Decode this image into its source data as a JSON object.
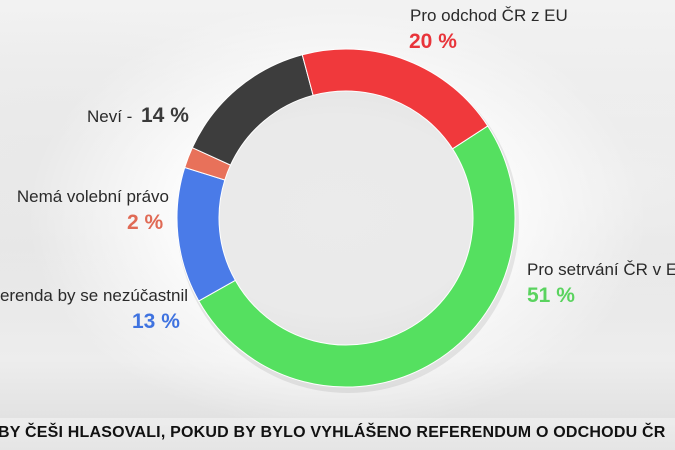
{
  "caption": "BY ČEŠI HLASOVALI, POKUD BY BYLO VYHLÁŠENO REFERENDUM O ODCHODU ČR",
  "chart_data": {
    "type": "donut",
    "title": "",
    "slices": [
      {
        "label": "Pro setrvání ČR v EU",
        "value": 51,
        "value_label": "51 %",
        "color": "#55e060"
      },
      {
        "label": "V případě referenda by se nezúčastnil",
        "value": 13,
        "value_label": "13 %",
        "color": "#4a7be8"
      },
      {
        "label": "Nemá volební právo",
        "value": 2,
        "value_label": "2 %",
        "color": "#e8715a"
      },
      {
        "label": "Neví",
        "value": 14,
        "value_label": "14 %",
        "color": "#3d3d3d"
      },
      {
        "label": "Pro odchod ČR z EU",
        "value": 20,
        "value_label": "20 %",
        "color": "#f0393c"
      }
    ],
    "start_angle_deg": 57,
    "direction": "clockwise"
  },
  "labels": {
    "setrvani_text": "Pro setrvání ČR v EU",
    "setrvani_pct": "51 %",
    "nezucastnil_text": "V případě referenda by se nezúčastnil",
    "nezucastnil_pct": "13 %",
    "volebni_text": "Nemá volební právo",
    "volebni_pct": "2 %",
    "nevi_text": "Neví - ",
    "nevi_pct": "14 %",
    "odchod_text": "Pro odchod ČR z EU",
    "odchod_pct": "20 %"
  }
}
